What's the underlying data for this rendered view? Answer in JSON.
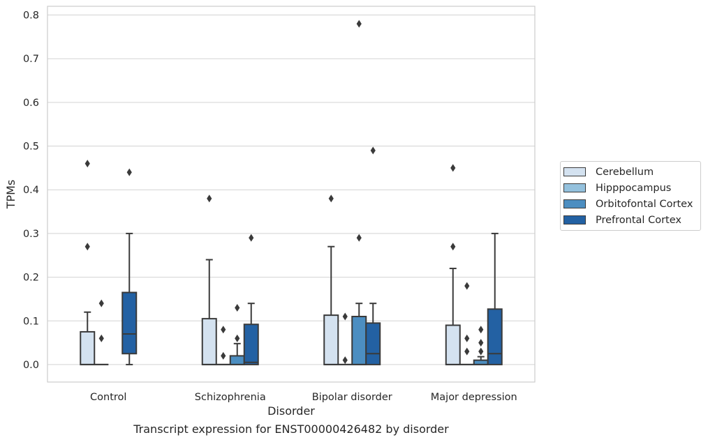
{
  "caption": "Transcript expression for ENST00000426482 by disorder",
  "colors": {
    "Cerebellum": "#d4e2f0",
    "Hipppocampus": "#94c1dd",
    "Orbitofontal Cortex": "#4c8ec1",
    "Prefrontal Cortex": "#2361a3"
  },
  "chart_data": {
    "type": "box",
    "xlabel": "Disorder",
    "ylabel": "TPMs",
    "ylim": [
      -0.04,
      0.82
    ],
    "yticks": [
      0.0,
      0.1,
      0.2,
      0.3,
      0.4,
      0.5,
      0.6,
      0.7,
      0.8
    ],
    "ytick_labels": [
      "0.0",
      "0.1",
      "0.2",
      "0.3",
      "0.4",
      "0.5",
      "0.6",
      "0.7",
      "0.8"
    ],
    "grid": true,
    "legend_position": "right",
    "categories": [
      "Control",
      "Schizophrenia",
      "Bipolar disorder",
      "Major depression"
    ],
    "series": [
      {
        "name": "Cerebellum",
        "boxes": [
          {
            "min": 0,
            "q1": 0,
            "median": 0,
            "q3": 0.075,
            "max": 0.12,
            "outliers": [
              0.27,
              0.46
            ]
          },
          {
            "min": 0,
            "q1": 0,
            "median": 0,
            "q3": 0.105,
            "max": 0.24,
            "outliers": [
              0.38
            ]
          },
          {
            "min": 0,
            "q1": 0,
            "median": 0,
            "q3": 0.113,
            "max": 0.27,
            "outliers": [
              0.38
            ]
          },
          {
            "min": 0,
            "q1": 0,
            "median": 0,
            "q3": 0.09,
            "max": 0.22,
            "outliers": [
              0.27,
              0.45
            ]
          }
        ]
      },
      {
        "name": "Hipppocampus",
        "boxes": [
          {
            "min": 0,
            "q1": 0,
            "median": 0,
            "q3": 0,
            "max": 0,
            "outliers": [
              0.06,
              0.14
            ]
          },
          {
            "min": 0,
            "q1": 0,
            "median": 0,
            "q3": 0,
            "max": 0,
            "outliers": [
              0.02,
              0.08
            ]
          },
          {
            "min": 0,
            "q1": 0,
            "median": 0,
            "q3": 0,
            "max": 0,
            "outliers": [
              0.01,
              0.11
            ]
          },
          {
            "min": 0,
            "q1": 0,
            "median": 0,
            "q3": 0,
            "max": 0,
            "outliers": [
              0.03,
              0.06,
              0.18
            ]
          }
        ]
      },
      {
        "name": "Orbitofontal Cortex",
        "boxes": null
      },
      {
        "name": "Prefrontal Cortex",
        "boxes": [
          {
            "min": 0,
            "q1": 0.025,
            "median": 0.07,
            "q3": 0.165,
            "max": 0.3,
            "outliers": [
              0.44
            ]
          },
          {
            "min": 0,
            "q1": 0,
            "median": 0.005,
            "q3": 0.092,
            "max": 0.14,
            "outliers": [
              0.29
            ]
          },
          {
            "min": 0,
            "q1": 0,
            "median": 0.025,
            "q3": 0.095,
            "max": 0.14,
            "outliers": [
              0.49
            ]
          },
          {
            "min": 0,
            "q1": 0,
            "median": 0.025,
            "q3": 0.127,
            "max": 0.3,
            "outliers": []
          }
        ]
      }
    ],
    "orbitofontal_boxes": [
      null,
      {
        "min": 0,
        "q1": 0,
        "median": 0,
        "q3": 0.02,
        "max": 0.048,
        "outliers": [
          0.06,
          0.13
        ]
      },
      {
        "min": 0,
        "q1": 0,
        "median": 0,
        "q3": 0.11,
        "max": 0.14,
        "outliers": [
          0.29,
          0.78
        ]
      },
      {
        "min": 0,
        "q1": 0,
        "median": 0,
        "q3": 0.01,
        "max": 0.018,
        "outliers": [
          0.03,
          0.05,
          0.08
        ]
      }
    ]
  }
}
